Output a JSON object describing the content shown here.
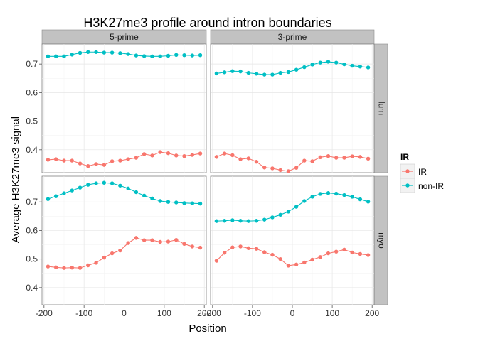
{
  "chart_data": {
    "type": "line",
    "title": "H3K27me3 profile around intron boundaries",
    "xlabel": "Position",
    "ylabel": "Average H3K27me3 signal",
    "x": [
      -190,
      -170,
      -150,
      -130,
      -110,
      -90,
      -70,
      -50,
      -30,
      -10,
      10,
      30,
      50,
      70,
      90,
      110,
      130,
      150,
      170,
      190
    ],
    "xticks": [
      -200,
      -100,
      0,
      100,
      200
    ],
    "xlim": [
      -205,
      205
    ],
    "col_facets": [
      "5-prime",
      "3-prime"
    ],
    "row_facets": [
      "lum",
      "myo"
    ],
    "rows": [
      {
        "ylim": [
          0.32,
          0.77
        ],
        "yticks": [
          0.4,
          0.5,
          0.6,
          0.7
        ],
        "ytick_labels": [
          "0.4",
          "0.5",
          "0.6",
          "0.7"
        ]
      },
      {
        "ylim": [
          0.34,
          0.79
        ],
        "yticks": [
          0.4,
          0.5,
          0.6,
          0.7
        ],
        "ytick_labels": [
          "0.4",
          "0.5",
          "0.6",
          "0.7"
        ]
      }
    ],
    "legend": {
      "title": "IR",
      "position": "right",
      "entries": [
        "IR",
        "non-IR"
      ]
    },
    "series_colors": {
      "IR": "#f8766d",
      "non-IR": "#00bfc4"
    },
    "grid": true,
    "panels": [
      {
        "row": "lum",
        "col": "5-prime",
        "series": [
          {
            "name": "IR",
            "values": [
              0.365,
              0.367,
              0.362,
              0.362,
              0.352,
              0.343,
              0.35,
              0.347,
              0.36,
              0.362,
              0.367,
              0.372,
              0.385,
              0.38,
              0.392,
              0.388,
              0.38,
              0.378,
              0.382,
              0.387
            ]
          },
          {
            "name": "non-IR",
            "values": [
              0.727,
              0.727,
              0.727,
              0.733,
              0.739,
              0.742,
              0.742,
              0.74,
              0.74,
              0.738,
              0.735,
              0.73,
              0.728,
              0.727,
              0.727,
              0.729,
              0.732,
              0.731,
              0.73,
              0.731
            ]
          }
        ]
      },
      {
        "row": "lum",
        "col": "3-prime",
        "series": [
          {
            "name": "IR",
            "values": [
              0.375,
              0.387,
              0.381,
              0.367,
              0.37,
              0.358,
              0.338,
              0.335,
              0.329,
              0.325,
              0.337,
              0.362,
              0.36,
              0.374,
              0.378,
              0.372,
              0.372,
              0.377,
              0.375,
              0.369
            ]
          },
          {
            "name": "non-IR",
            "values": [
              0.667,
              0.671,
              0.675,
              0.674,
              0.669,
              0.666,
              0.663,
              0.663,
              0.669,
              0.672,
              0.68,
              0.689,
              0.698,
              0.705,
              0.708,
              0.705,
              0.699,
              0.694,
              0.691,
              0.688
            ]
          }
        ]
      },
      {
        "row": "myo",
        "col": "5-prime",
        "series": [
          {
            "name": "IR",
            "values": [
              0.474,
              0.471,
              0.469,
              0.47,
              0.469,
              0.478,
              0.487,
              0.505,
              0.52,
              0.53,
              0.556,
              0.574,
              0.566,
              0.566,
              0.56,
              0.561,
              0.567,
              0.553,
              0.544,
              0.54
            ]
          },
          {
            "name": "non-IR",
            "values": [
              0.71,
              0.72,
              0.73,
              0.74,
              0.75,
              0.76,
              0.765,
              0.767,
              0.765,
              0.757,
              0.747,
              0.734,
              0.722,
              0.712,
              0.703,
              0.7,
              0.698,
              0.696,
              0.695,
              0.694
            ]
          }
        ]
      },
      {
        "row": "myo",
        "col": "3-prime",
        "series": [
          {
            "name": "IR",
            "values": [
              0.494,
              0.522,
              0.541,
              0.544,
              0.538,
              0.536,
              0.524,
              0.515,
              0.5,
              0.477,
              0.481,
              0.488,
              0.498,
              0.507,
              0.52,
              0.526,
              0.533,
              0.523,
              0.518,
              0.514
            ]
          },
          {
            "name": "non-IR",
            "values": [
              0.633,
              0.634,
              0.636,
              0.634,
              0.633,
              0.634,
              0.638,
              0.646,
              0.655,
              0.666,
              0.683,
              0.703,
              0.718,
              0.728,
              0.731,
              0.729,
              0.724,
              0.718,
              0.709,
              0.701
            ]
          }
        ]
      }
    ]
  }
}
